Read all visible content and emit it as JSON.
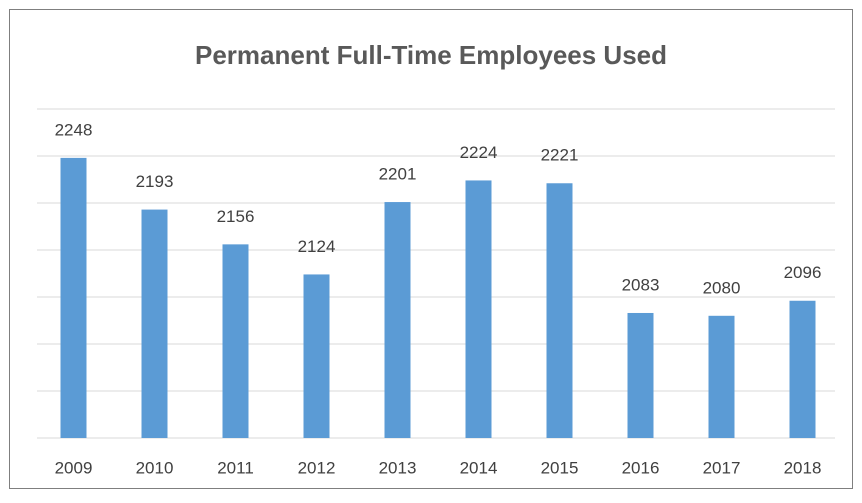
{
  "chart_data": {
    "type": "bar",
    "title": "Permanent Full-Time Employees Used",
    "categories": [
      "2009",
      "2010",
      "2011",
      "2012",
      "2013",
      "2014",
      "2015",
      "2016",
      "2017",
      "2018"
    ],
    "values": [
      2248,
      2193,
      2156,
      2124,
      2201,
      2224,
      2221,
      2083,
      2080,
      2096
    ],
    "color": "#5b9bd5",
    "ylim": [
      1950,
      2300
    ],
    "yticks": [
      1950,
      2000,
      2050,
      2100,
      2150,
      2200,
      2250,
      2300
    ],
    "grid": true
  }
}
